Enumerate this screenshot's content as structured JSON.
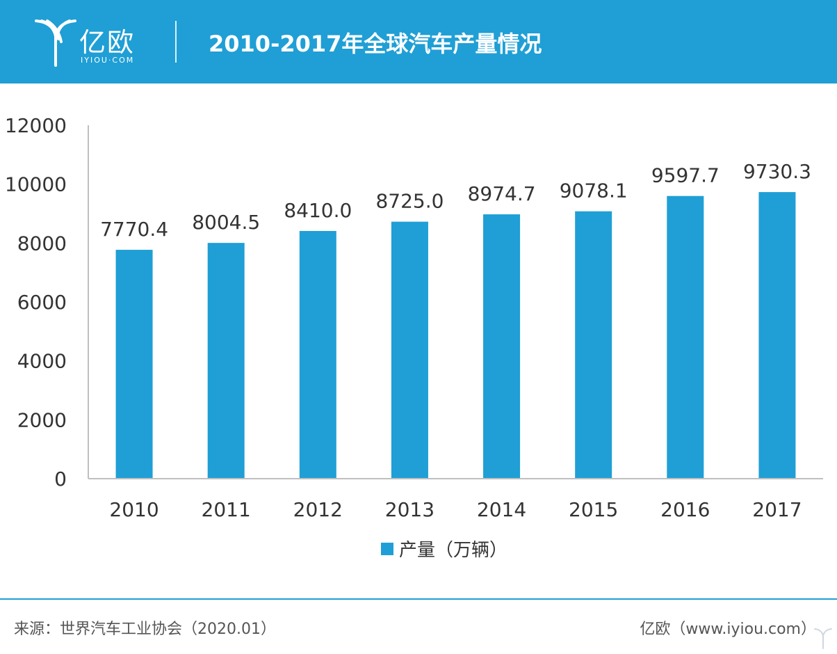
{
  "header": {
    "logo_text": "亿欧",
    "logo_sub": "IYIOU·COM",
    "title": "2010-2017年全球汽车产量情况"
  },
  "footer": {
    "source": "来源：世界汽车工业协会（2020.01）",
    "brand": "亿欧（www.iyiou.com）"
  },
  "colors": {
    "header_bg": "#1f9fd5",
    "bar": "#1f9fd5",
    "axis": "#bfbfbf",
    "text": "#333333"
  },
  "chart_data": {
    "type": "bar",
    "title": "",
    "xlabel": "",
    "ylabel": "",
    "categories": [
      "2010",
      "2011",
      "2012",
      "2013",
      "2014",
      "2015",
      "2016",
      "2017"
    ],
    "series": [
      {
        "name": "产量（万辆）",
        "values": [
          7770.4,
          8004.5,
          8410.0,
          8725.0,
          8974.7,
          9078.1,
          9597.7,
          9730.3
        ],
        "labels": [
          "7770.4",
          "8004.5",
          "8410.0",
          "8725.0",
          "8974.7",
          "9078.1",
          "9597.7",
          "9730.3"
        ]
      }
    ],
    "ylim": [
      0,
      12000
    ],
    "yticks": [
      0,
      2000,
      4000,
      6000,
      8000,
      10000,
      12000
    ],
    "grid": false,
    "legend": "bottom-center"
  }
}
